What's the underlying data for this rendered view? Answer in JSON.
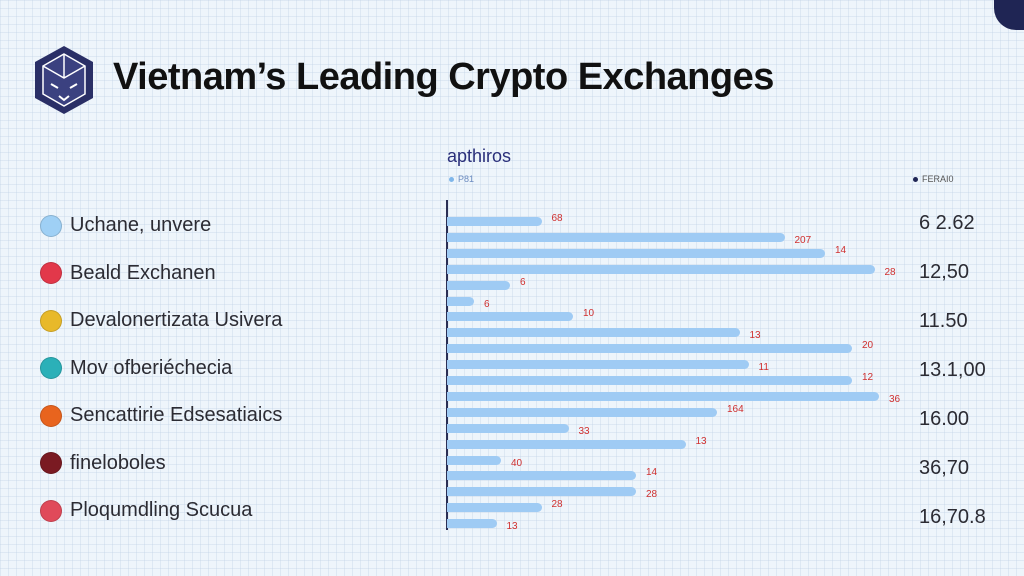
{
  "title": "Vietnam’s Leading Crypto Exchanges",
  "exchanges": [
    {
      "name": "Uchane, unvere",
      "icon": "blue-coin-icon",
      "color": "#9fd0f5",
      "value": "6 2.62"
    },
    {
      "name": "Beald Exchanen",
      "icon": "red-coin-icon",
      "color": "#e2384a",
      "value": "12,50"
    },
    {
      "name": "Devalonertizata Usivera",
      "icon": "gold-coin-icon",
      "color": "#e8b92a",
      "value": "11.50"
    },
    {
      "name": "Mov ofberiéchecia",
      "icon": "teal-coin-icon",
      "color": "#2bb0b8",
      "value": "13.1,00"
    },
    {
      "name": "Sencattirie Edsesatiaics",
      "icon": "orange-coin-icon",
      "color": "#e8641e",
      "value": "16.00"
    },
    {
      "name": "fineloboles",
      "icon": "maroon-coin-icon",
      "color": "#7a1a22",
      "value": "36,70"
    },
    {
      "name": "Ploqumdling Scucua",
      "icon": "pink-coin-icon",
      "color": "#e04a5a",
      "value": "16,70.8"
    }
  ],
  "chart_data": {
    "type": "bar",
    "title": "apthiros",
    "legend": [
      {
        "label": "P81",
        "color": "#7fb6ea"
      },
      {
        "label": "FERAI0",
        "color": "#1f2554"
      }
    ],
    "legend_placement": "top",
    "bar_color": "#9fcbf4",
    "label_color": "#d0302f",
    "xlim": [
      0,
      100
    ],
    "bar_lengths": [
      21,
      75,
      84,
      95,
      14,
      6,
      28,
      65,
      90,
      67,
      90,
      96,
      60,
      27,
      53,
      12,
      42,
      42,
      21,
      11
    ],
    "labels": [
      "68",
      "207",
      "14",
      "28",
      "6",
      "6",
      "10",
      "13",
      "20",
      "11",
      "12",
      "36",
      "164",
      "33",
      "13",
      "40",
      "14",
      "28",
      "28",
      "13"
    ]
  }
}
